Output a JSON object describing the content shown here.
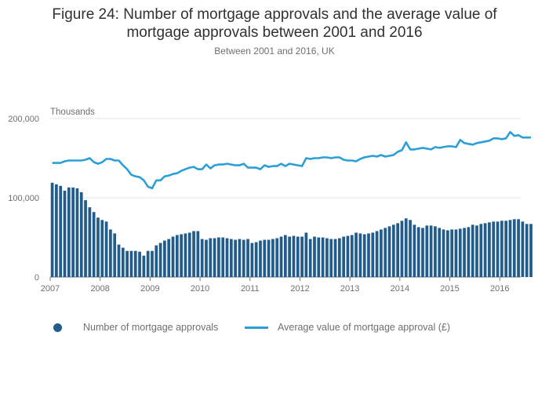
{
  "title": {
    "line1": "Figure 24: Number of mortgage approvals and the average value of",
    "line2": "mortgage approvals between 2001 and 2016"
  },
  "subtitle": "Between 2001 and 2016, UK",
  "colors": {
    "bars": "#215c8c",
    "line": "#2b9fd6",
    "grid": "#e3e3e3",
    "axis": "#7a7a7a"
  },
  "chart_data": {
    "type": "bar+line",
    "ylabel": "Thousands",
    "ylim": [
      0,
      200000
    ],
    "yticks": [
      0,
      100000,
      200000
    ],
    "ytick_labels": [
      "0",
      "100,000",
      "200,000"
    ],
    "xlim": [
      2007.0,
      2016.42
    ],
    "xticks": [
      2007,
      2008,
      2009,
      2010,
      2011,
      2012,
      2013,
      2014,
      2015,
      2016
    ],
    "xtick_labels": [
      "2007",
      "2008",
      "2009",
      "2010",
      "2011",
      "2012",
      "2013",
      "2014",
      "2015",
      "2016"
    ],
    "legend": [
      "Number of mortgage approvals",
      "Average value of mortgage approval (£)"
    ],
    "legend_position": "bottom",
    "series": [
      {
        "name": "Number of mortgage approvals",
        "kind": "bar",
        "start": "2007-01",
        "frequency": "monthly",
        "values": [
          119000,
          117000,
          115000,
          109000,
          113000,
          113000,
          112000,
          107000,
          97000,
          88000,
          82000,
          75000,
          72000,
          70000,
          60000,
          55000,
          41000,
          37000,
          33000,
          33000,
          33000,
          32000,
          27000,
          33000,
          33000,
          40000,
          43000,
          46000,
          48000,
          51000,
          53000,
          54000,
          55000,
          56000,
          58000,
          58000,
          48000,
          47000,
          49000,
          49000,
          50000,
          50000,
          49000,
          48000,
          47000,
          48000,
          47000,
          48000,
          43000,
          44000,
          46000,
          47000,
          47000,
          48000,
          49000,
          51000,
          53000,
          51000,
          52000,
          51000,
          51000,
          56000,
          48000,
          51000,
          50000,
          50000,
          49000,
          48000,
          48000,
          49000,
          51000,
          52000,
          53000,
          56000,
          55000,
          54000,
          55000,
          56000,
          58000,
          60000,
          62000,
          64000,
          66000,
          68000,
          71000,
          74000,
          72000,
          66000,
          63000,
          62000,
          65000,
          65000,
          64000,
          62000,
          60000,
          59000,
          60000,
          60000,
          61000,
          62000,
          63000,
          66000,
          65000,
          67000,
          68000,
          69000,
          70000,
          70000,
          71000,
          71000,
          72000,
          73000,
          73000,
          70000,
          67000,
          67000
        ]
      },
      {
        "name": "Average value of mortgage approval (£)",
        "kind": "line",
        "start": "2007-01",
        "frequency": "monthly",
        "values": [
          144000,
          144000,
          144000,
          146000,
          147000,
          147000,
          147000,
          147000,
          148000,
          150000,
          145000,
          143000,
          145000,
          149000,
          149000,
          147000,
          147000,
          141000,
          136000,
          129000,
          127000,
          126000,
          122000,
          114000,
          112000,
          122000,
          122000,
          127000,
          128000,
          130000,
          131000,
          134000,
          136000,
          138000,
          139000,
          136000,
          136000,
          142000,
          137000,
          141000,
          142000,
          142000,
          143000,
          142000,
          141000,
          141000,
          143000,
          138000,
          138000,
          138000,
          136000,
          141000,
          139000,
          140000,
          140000,
          143000,
          140000,
          143000,
          142000,
          141000,
          140000,
          150000,
          149000,
          150000,
          150000,
          151000,
          151000,
          150000,
          151000,
          151000,
          148000,
          147000,
          147000,
          146000,
          149000,
          151000,
          152000,
          153000,
          152000,
          154000,
          152000,
          153000,
          154000,
          158000,
          160000,
          170000,
          161000,
          161000,
          162000,
          163000,
          162000,
          161000,
          164000,
          163000,
          164000,
          165000,
          165000,
          164000,
          173000,
          169000,
          168000,
          167000,
          169000,
          170000,
          171000,
          172000,
          175000,
          175000,
          174000,
          175000,
          183000,
          178000,
          179000,
          176000,
          176000,
          176000
        ]
      }
    ]
  }
}
